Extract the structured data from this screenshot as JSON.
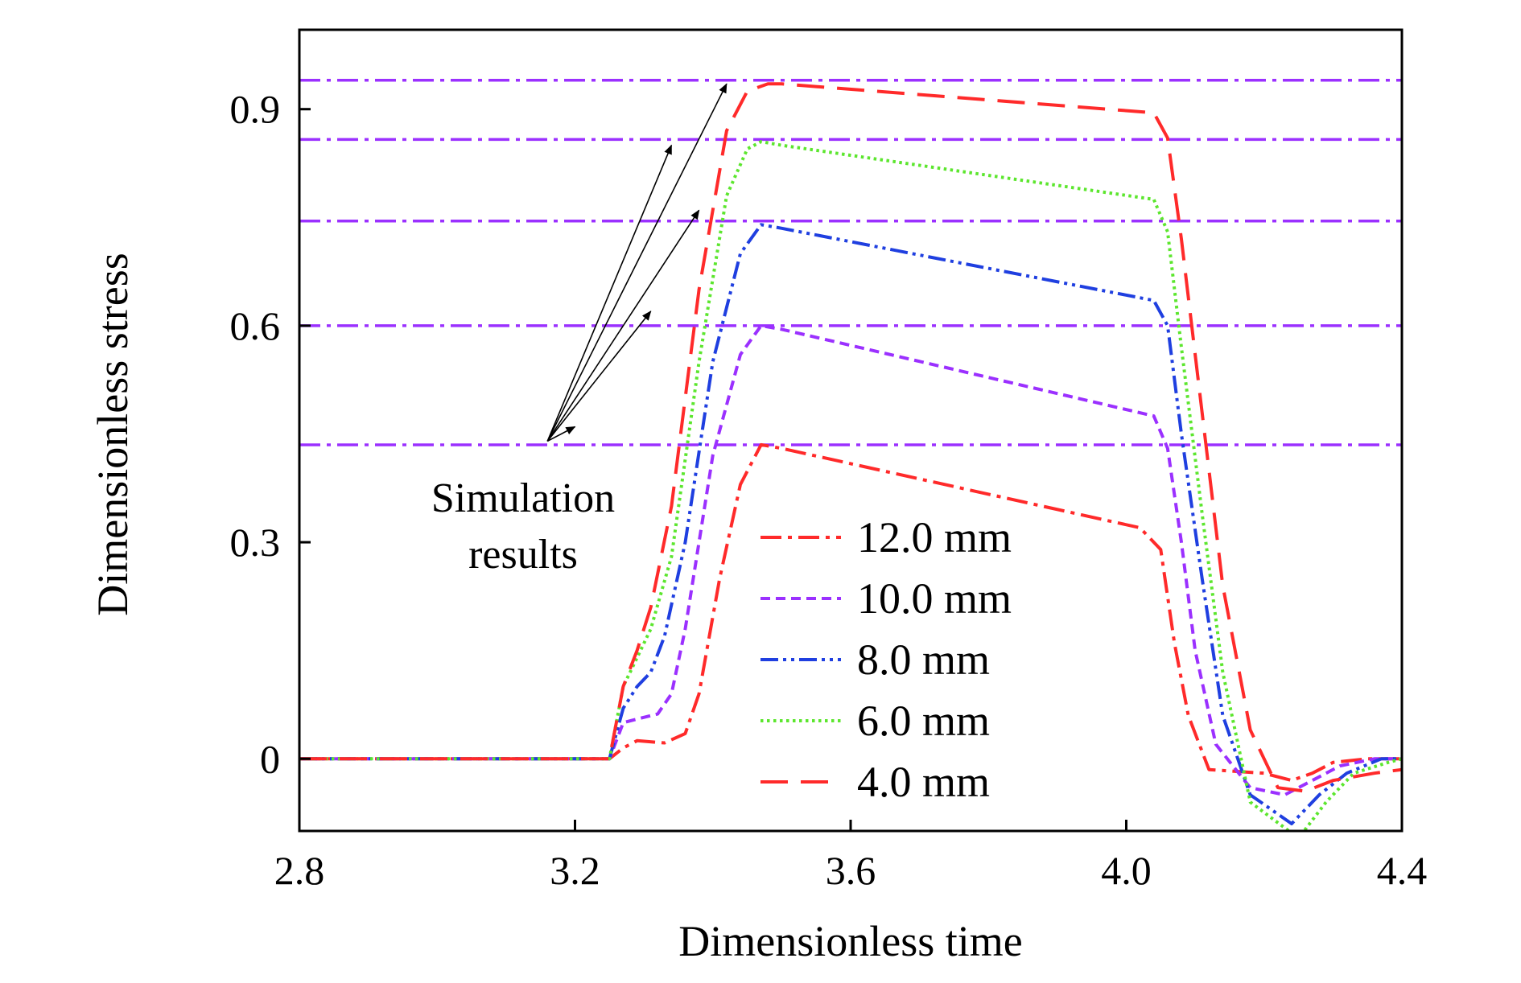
{
  "chart_data": {
    "type": "line",
    "xlabel": "Dimensionless time",
    "ylabel": "Dimensionless stress",
    "xlim": [
      2.8,
      4.4
    ],
    "ylim": [
      -0.1,
      1.01
    ],
    "xticks": [
      2.8,
      3.2,
      3.6,
      4.0,
      4.4
    ],
    "xtick_labels": [
      "2.8",
      "3.2",
      "3.6",
      "4.0",
      "4.4"
    ],
    "yticks": [
      0,
      0.3,
      0.6,
      0.9
    ],
    "ytick_labels": [
      "0",
      "0.3",
      "0.6",
      "0.9"
    ],
    "grid": false,
    "legend_position": "lower-center",
    "series": [
      {
        "name": "12.0 mm",
        "color": "#ff2a2a",
        "style": "dash-dot",
        "x": [
          2.8,
          3.25,
          3.27,
          3.29,
          3.33,
          3.36,
          3.38,
          3.41,
          3.44,
          3.47,
          3.5,
          4.02,
          4.05,
          4.07,
          4.09,
          4.12,
          4.2,
          4.24,
          4.27,
          4.3,
          4.35,
          4.4
        ],
        "y": [
          0,
          0,
          0.015,
          0.025,
          0.022,
          0.035,
          0.09,
          0.25,
          0.38,
          0.435,
          0.43,
          0.32,
          0.29,
          0.16,
          0.06,
          -0.015,
          -0.02,
          -0.03,
          -0.02,
          -0.005,
          0,
          0
        ]
      },
      {
        "name": "10.0 mm",
        "color": "#9b30ff",
        "style": "dash",
        "x": [
          2.8,
          3.25,
          3.27,
          3.29,
          3.32,
          3.34,
          3.36,
          3.4,
          3.44,
          3.47,
          3.5,
          4.04,
          4.06,
          4.08,
          4.1,
          4.13,
          4.18,
          4.23,
          4.27,
          4.31,
          4.36,
          4.4
        ],
        "y": [
          0,
          0,
          0.05,
          0.055,
          0.062,
          0.09,
          0.18,
          0.42,
          0.56,
          0.6,
          0.595,
          0.475,
          0.43,
          0.3,
          0.15,
          0.02,
          -0.04,
          -0.05,
          -0.03,
          -0.01,
          0,
          0
        ]
      },
      {
        "name": "8.0 mm",
        "color": "#1f3fe0",
        "style": "dash-dot-dot",
        "x": [
          2.8,
          3.25,
          3.27,
          3.29,
          3.31,
          3.33,
          3.36,
          3.4,
          3.44,
          3.47,
          3.5,
          4.04,
          4.06,
          4.08,
          4.11,
          4.14,
          4.18,
          4.24,
          4.28,
          4.32,
          4.37,
          4.4
        ],
        "y": [
          0,
          0,
          0.07,
          0.1,
          0.12,
          0.17,
          0.3,
          0.55,
          0.7,
          0.74,
          0.735,
          0.635,
          0.6,
          0.45,
          0.25,
          0.06,
          -0.05,
          -0.09,
          -0.05,
          -0.02,
          0,
          0
        ]
      },
      {
        "name": "6.0 mm",
        "color": "#5ce62e",
        "style": "dot",
        "x": [
          2.8,
          3.25,
          3.27,
          3.29,
          3.31,
          3.34,
          3.38,
          3.42,
          3.45,
          3.47,
          3.5,
          4.04,
          4.06,
          4.08,
          4.11,
          4.14,
          4.18,
          4.25,
          4.29,
          4.33,
          4.38,
          4.4
        ],
        "y": [
          0,
          0,
          0.1,
          0.14,
          0.18,
          0.28,
          0.55,
          0.78,
          0.845,
          0.855,
          0.85,
          0.775,
          0.73,
          0.57,
          0.34,
          0.12,
          -0.06,
          -0.11,
          -0.06,
          -0.02,
          -0.005,
          0
        ]
      },
      {
        "name": "4.0 mm",
        "color": "#ff2a2a",
        "style": "long-dash",
        "x": [
          2.8,
          3.25,
          3.27,
          3.29,
          3.31,
          3.34,
          3.38,
          3.42,
          3.45,
          3.48,
          3.5,
          4.04,
          4.06,
          4.08,
          4.11,
          4.14,
          4.18,
          4.22,
          4.26,
          4.3,
          4.36,
          4.4
        ],
        "y": [
          0,
          0,
          0.1,
          0.15,
          0.21,
          0.35,
          0.65,
          0.87,
          0.925,
          0.935,
          0.935,
          0.895,
          0.86,
          0.72,
          0.48,
          0.24,
          0.04,
          -0.04,
          -0.045,
          -0.03,
          -0.02,
          -0.015
        ]
      }
    ],
    "reference_lines": {
      "color": "#9b30ff",
      "style": "dash-dot",
      "y": [
        0.435,
        0.6,
        0.745,
        0.858,
        0.94
      ]
    },
    "annotations": [
      {
        "text_lines": [
          "Simulation",
          "results"
        ],
        "arrow_origin": [
          3.16,
          0.44
        ],
        "arrow_targets": [
          [
            3.2,
            0.46
          ],
          [
            3.31,
            0.62
          ],
          [
            3.38,
            0.76
          ],
          [
            3.34,
            0.85
          ],
          [
            3.42,
            0.935
          ]
        ]
      }
    ]
  }
}
